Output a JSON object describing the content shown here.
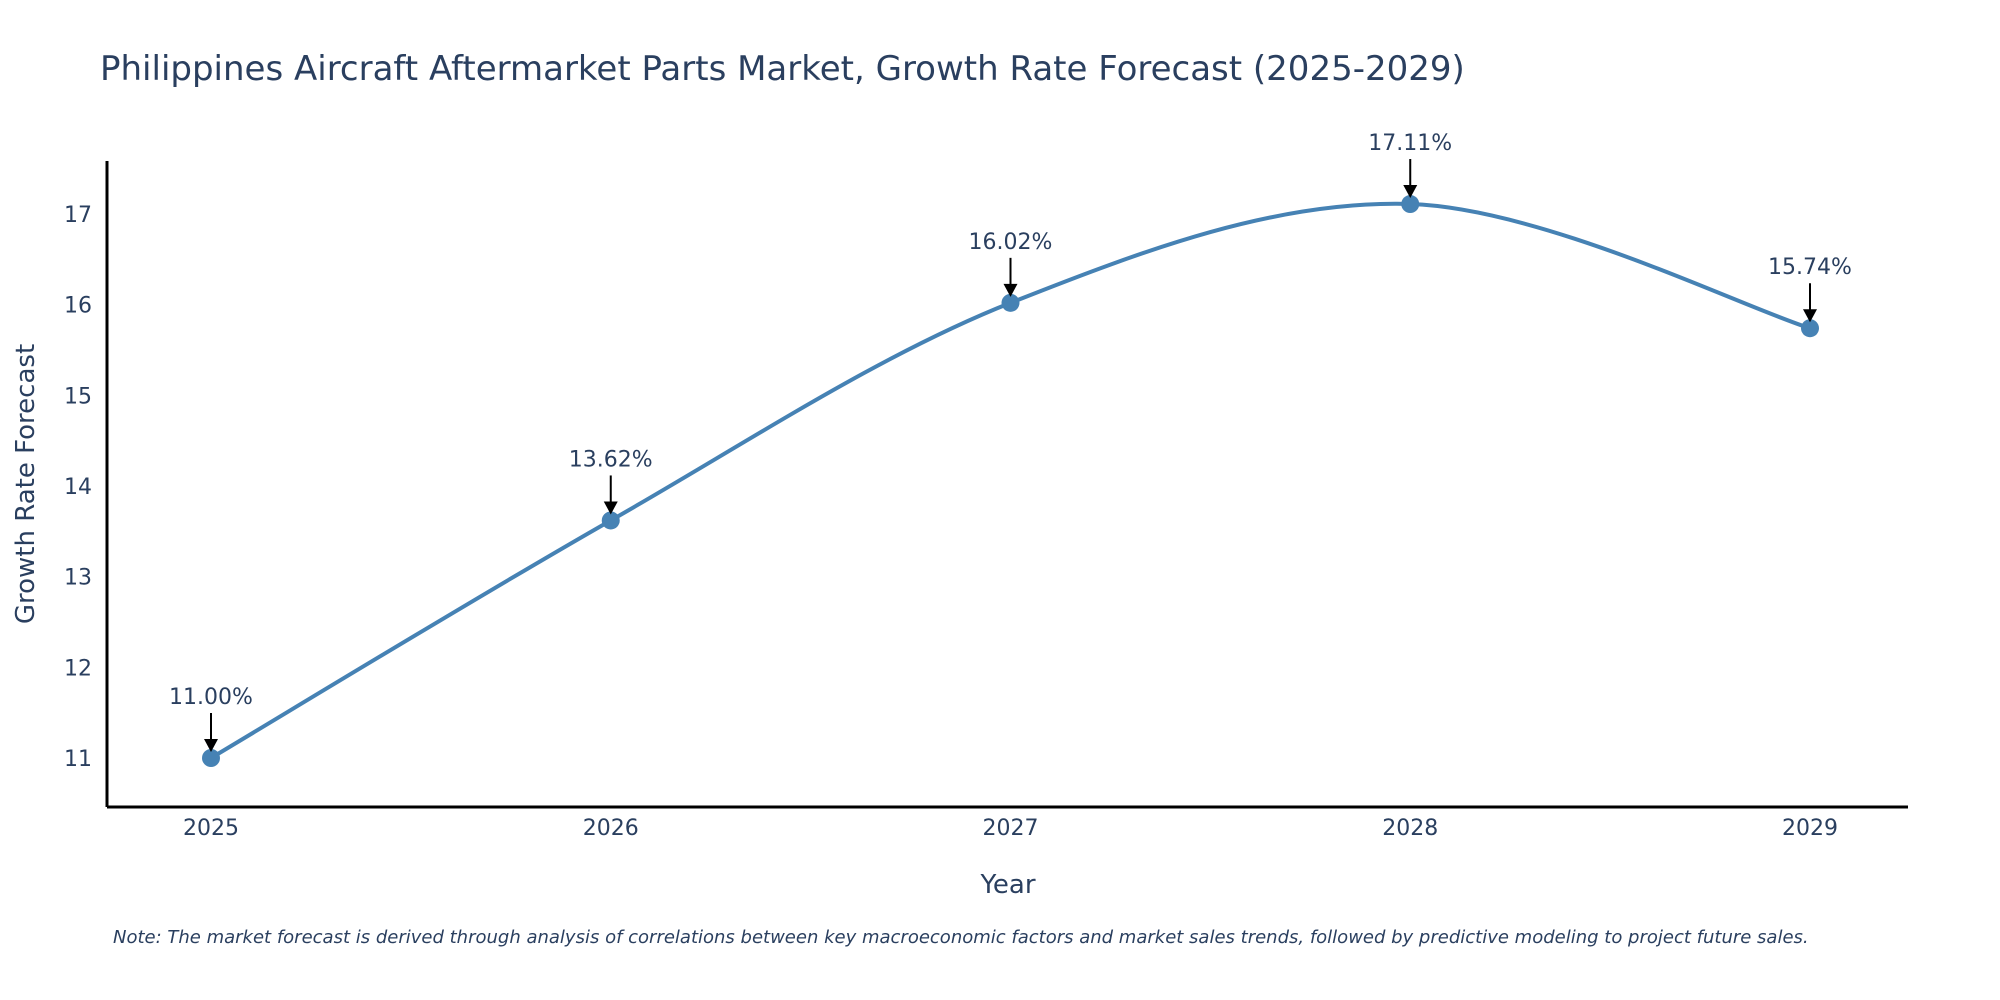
{
  "chart_data": {
    "type": "line",
    "title": "Philippines Aircraft Aftermarket Parts Market, Growth Rate Forecast (2025-2029)",
    "xlabel": "Year",
    "ylabel": "Growth Rate Forecast",
    "categories": [
      "2025",
      "2026",
      "2027",
      "2028",
      "2029"
    ],
    "series": [
      {
        "name": "Growth Rate Forecast",
        "values": [
          11.0,
          13.62,
          16.02,
          17.11,
          15.74
        ],
        "color": "#4682b4"
      }
    ],
    "annotations": [
      "11.00%",
      "13.62%",
      "16.02%",
      "17.11%",
      "15.74%"
    ],
    "ylim": [
      10.5,
      17.6
    ],
    "yticks": [
      "11",
      "12",
      "13",
      "14",
      "15",
      "16",
      "17"
    ],
    "grid": false,
    "line_shape": "spline",
    "note": "Note: The market forecast is derived through analysis of correlations between key macroeconomic factors and market sales trends, followed by predictive modeling to project future sales."
  }
}
